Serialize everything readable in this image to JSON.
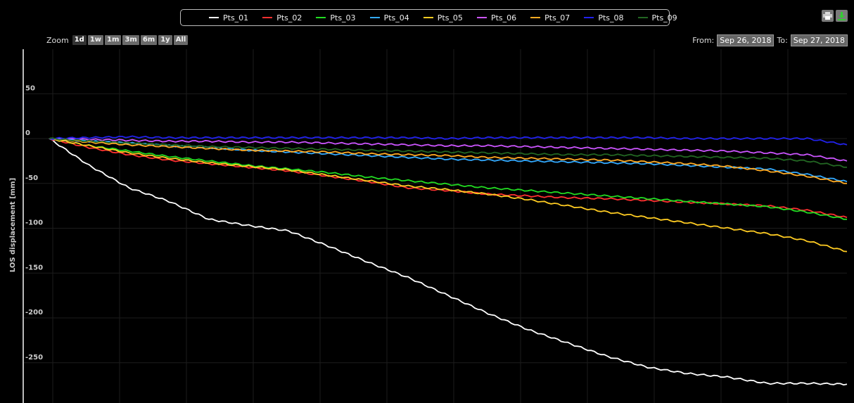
{
  "legend": [
    "Pts_01",
    "Pts_02",
    "Pts_03",
    "Pts_04",
    "Pts_05",
    "Pts_06",
    "Pts_07",
    "Pts_08",
    "Pts_09"
  ],
  "zoom": {
    "label": "Zoom",
    "buttons": [
      "1d",
      "1w",
      "1m",
      "3m",
      "6m",
      "1y",
      "All"
    ],
    "active": "1d"
  },
  "range": {
    "from_label": "From:",
    "from_value": "Sep 26, 2018",
    "to_label": "To:",
    "to_value": "Sep 27, 2018"
  },
  "tools": {
    "print_icon": "print-icon",
    "download_icon": "download-icon"
  },
  "chart_data": {
    "type": "line",
    "ylabel": "LOS displacement [mm]",
    "ylim": [
      -285,
      100
    ],
    "yticks": [
      50,
      0,
      -50,
      -100,
      -150,
      -200,
      -250
    ],
    "grid": true,
    "legend_position": "top-center",
    "x": [
      0,
      5,
      10,
      15,
      20,
      25,
      30,
      35,
      40,
      45,
      50,
      55,
      60,
      65,
      70,
      75,
      80,
      85,
      90,
      95,
      100
    ],
    "series": [
      {
        "name": "Pts_01",
        "color": "#ffffff",
        "values": [
          0,
          -30,
          -55,
          -70,
          -90,
          -97,
          -103,
          -120,
          -138,
          -155,
          -175,
          -195,
          -213,
          -228,
          -243,
          -255,
          -262,
          -266,
          -273,
          -273,
          -274
        ]
      },
      {
        "name": "Pts_02",
        "color": "#ff3030",
        "values": [
          0,
          -10,
          -18,
          -24,
          -28,
          -32,
          -36,
          -42,
          -48,
          -55,
          -58,
          -62,
          -64,
          -66,
          -67,
          -69,
          -71,
          -73,
          -75,
          -80,
          -88
        ]
      },
      {
        "name": "Pts_03",
        "color": "#22dd22",
        "values": [
          0,
          -8,
          -14,
          -20,
          -25,
          -30,
          -34,
          -38,
          -43,
          -47,
          -51,
          -55,
          -58,
          -61,
          -64,
          -67,
          -70,
          -73,
          -76,
          -82,
          -90
        ]
      },
      {
        "name": "Pts_04",
        "color": "#33aaff",
        "values": [
          0,
          -3,
          -5,
          -8,
          -10,
          -13,
          -15,
          -17,
          -19,
          -21,
          -23,
          -24,
          -25,
          -26,
          -27,
          -28,
          -30,
          -32,
          -34,
          -40,
          -48
        ]
      },
      {
        "name": "Pts_05",
        "color": "#ffcc22",
        "values": [
          0,
          -8,
          -16,
          -22,
          -27,
          -31,
          -35,
          -41,
          -47,
          -53,
          -57,
          -62,
          -68,
          -75,
          -82,
          -88,
          -94,
          -100,
          -106,
          -114,
          -126
        ]
      },
      {
        "name": "Pts_06",
        "color": "#cc55ff",
        "values": [
          0,
          -1,
          -2,
          -3,
          -3,
          -4,
          -4,
          -5,
          -6,
          -7,
          -8,
          -8,
          -9,
          -10,
          -11,
          -12,
          -13,
          -14,
          -16,
          -18,
          -25
        ]
      },
      {
        "name": "Pts_07",
        "color": "#ffaa22",
        "values": [
          0,
          -4,
          -7,
          -9,
          -11,
          -13,
          -14,
          -15,
          -17,
          -18,
          -19,
          -21,
          -22,
          -23,
          -24,
          -26,
          -28,
          -31,
          -36,
          -42,
          -50
        ]
      },
      {
        "name": "Pts_08",
        "color": "#2222ee",
        "values": [
          0,
          1,
          2,
          1,
          1,
          1,
          1,
          1,
          1,
          1,
          0,
          1,
          1,
          1,
          1,
          1,
          0,
          0,
          0,
          0,
          -7
        ]
      },
      {
        "name": "Pts_09",
        "color": "#226622",
        "values": [
          0,
          -3,
          -5,
          -7,
          -9,
          -10,
          -11,
          -12,
          -13,
          -14,
          -15,
          -16,
          -17,
          -18,
          -18,
          -19,
          -20,
          -21,
          -22,
          -25,
          -32
        ]
      }
    ]
  }
}
